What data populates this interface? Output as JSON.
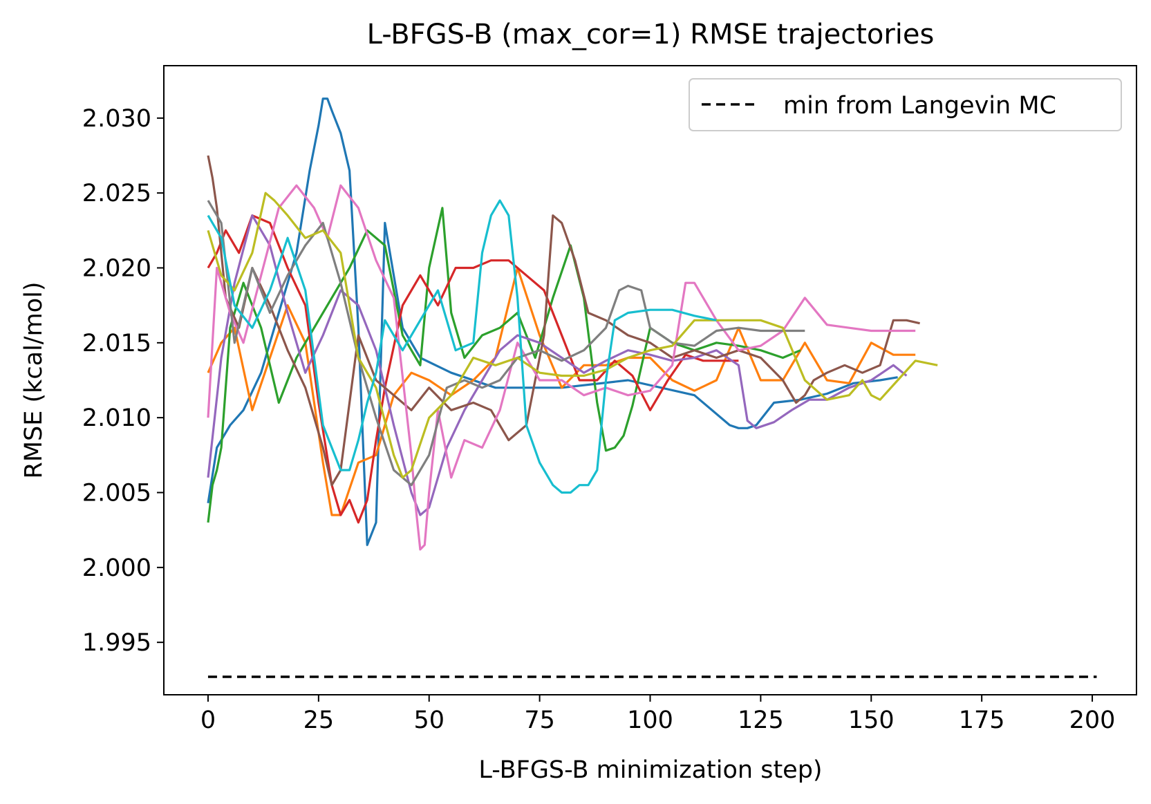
{
  "chart_data": {
    "type": "line",
    "title": "L-BFGS-B (max_cor=1) RMSE trajectories",
    "xlabel": "L-BFGS-B minimization step)",
    "ylabel": "RMSE (kcal/mol)",
    "xlim": [
      -10,
      210
    ],
    "ylim": [
      1.9915,
      2.0335
    ],
    "xticks": [
      0,
      25,
      50,
      75,
      100,
      125,
      150,
      175,
      200
    ],
    "yticks": [
      1.995,
      2.0,
      2.005,
      2.01,
      2.015,
      2.02,
      2.025,
      2.03
    ],
    "grid": false,
    "legend": {
      "placement": "top-right",
      "entries": [
        "min from Langevin MC"
      ]
    },
    "reference_line": {
      "name": "min from Langevin MC",
      "style": "dashed",
      "color": "#000000",
      "x": [
        0,
        201
      ],
      "y": 1.9927
    },
    "colors": [
      "#1f77b4",
      "#ff7f0e",
      "#2ca02c",
      "#d62728",
      "#9467bd",
      "#8c564b",
      "#e377c2",
      "#7f7f7f",
      "#bcbd22",
      "#17becf"
    ],
    "series": [
      {
        "x": [
          0,
          2,
          5,
          8,
          12,
          16,
          20,
          23,
          25,
          26,
          27,
          28,
          30,
          32,
          34,
          36,
          38,
          40,
          44,
          48,
          55,
          65,
          80,
          95,
          110,
          118,
          120,
          122,
          124,
          128,
          134,
          140,
          146,
          152,
          156
        ],
        "y": [
          2.0043,
          2.008,
          2.0095,
          2.0105,
          2.013,
          2.017,
          2.021,
          2.0265,
          2.0295,
          2.0313,
          2.0313,
          2.0305,
          2.029,
          2.0265,
          2.016,
          2.0015,
          2.003,
          2.023,
          2.016,
          2.014,
          2.013,
          2.012,
          2.012,
          2.0125,
          2.0115,
          2.0095,
          2.0093,
          2.0093,
          2.0095,
          2.011,
          2.0112,
          2.0116,
          2.0123,
          2.0125,
          2.0127
        ]
      },
      {
        "x": [
          0,
          3,
          6,
          10,
          14,
          18,
          22,
          26,
          28,
          30,
          34,
          38,
          42,
          46,
          50,
          55,
          60,
          65,
          70,
          75,
          80,
          85,
          90,
          95,
          100,
          105,
          110,
          115,
          120,
          125,
          130,
          135,
          140,
          145,
          150,
          155,
          160
        ],
        "y": [
          2.013,
          2.015,
          2.016,
          2.0105,
          2.014,
          2.0175,
          2.015,
          2.007,
          2.0035,
          2.0035,
          2.007,
          2.0075,
          2.0115,
          2.013,
          2.0125,
          2.0115,
          2.0125,
          2.014,
          2.02,
          2.0155,
          2.012,
          2.0135,
          2.0135,
          2.014,
          2.014,
          2.0125,
          2.0118,
          2.0125,
          2.016,
          2.0125,
          2.0125,
          2.015,
          2.0125,
          2.0123,
          2.015,
          2.0142,
          2.0142
        ]
      },
      {
        "x": [
          0,
          1,
          2,
          3,
          5,
          8,
          12,
          16,
          20,
          24,
          28,
          32,
          36,
          40,
          44,
          48,
          50,
          53,
          55,
          58,
          62,
          66,
          70,
          74,
          78,
          82,
          85,
          88,
          90,
          92,
          94,
          96,
          100,
          105,
          110,
          115,
          120,
          125,
          130,
          134
        ],
        "y": [
          2.003,
          2.0055,
          2.0065,
          2.008,
          2.016,
          2.019,
          2.016,
          2.011,
          2.014,
          2.016,
          2.018,
          2.02,
          2.0225,
          2.0215,
          2.0155,
          2.0135,
          2.02,
          2.024,
          2.017,
          2.014,
          2.0155,
          2.016,
          2.017,
          2.014,
          2.018,
          2.0215,
          2.018,
          2.011,
          2.0078,
          2.008,
          2.0088,
          2.0108,
          2.016,
          2.015,
          2.0145,
          2.015,
          2.0148,
          2.0145,
          2.014,
          2.0145
        ]
      },
      {
        "x": [
          0,
          2,
          4,
          7,
          10,
          14,
          18,
          22,
          25,
          28,
          30,
          32,
          34,
          36,
          38,
          40,
          44,
          48,
          52,
          56,
          60,
          64,
          68,
          72,
          76,
          80,
          84,
          88,
          92,
          96,
          100,
          104,
          108,
          112,
          116,
          120
        ],
        "y": [
          2.02,
          2.021,
          2.0225,
          2.021,
          2.0235,
          2.023,
          2.02,
          2.0175,
          2.011,
          2.0055,
          2.0035,
          2.0045,
          2.003,
          2.0045,
          2.0085,
          2.012,
          2.0175,
          2.0195,
          2.0175,
          2.02,
          2.02,
          2.0205,
          2.0205,
          2.0195,
          2.0185,
          2.0155,
          2.0125,
          2.0125,
          2.0138,
          2.0128,
          2.0105,
          2.0125,
          2.0142,
          2.0138,
          2.0138,
          2.0138
        ]
      },
      {
        "x": [
          0,
          3,
          6,
          10,
          14,
          18,
          22,
          26,
          30,
          34,
          38,
          42,
          46,
          48,
          50,
          54,
          58,
          62,
          66,
          70,
          75,
          80,
          85,
          90,
          95,
          100,
          105,
          110,
          115,
          120,
          122,
          124,
          128,
          132,
          136,
          140,
          145,
          150,
          155,
          158
        ],
        "y": [
          2.006,
          2.014,
          2.019,
          2.0235,
          2.0215,
          2.017,
          2.013,
          2.0155,
          2.0185,
          2.0175,
          2.0145,
          2.0095,
          2.005,
          2.0035,
          2.004,
          2.008,
          2.0105,
          2.0125,
          2.0145,
          2.0155,
          2.015,
          2.014,
          2.013,
          2.0138,
          2.0145,
          2.0142,
          2.0138,
          2.014,
          2.0145,
          2.0135,
          2.0098,
          2.0093,
          2.0097,
          2.0105,
          2.0112,
          2.0112,
          2.012,
          2.0125,
          2.0135,
          2.0128
        ]
      },
      {
        "x": [
          0,
          1,
          2,
          4,
          7,
          10,
          14,
          18,
          22,
          26,
          28,
          30,
          34,
          38,
          42,
          46,
          50,
          55,
          60,
          64,
          68,
          72,
          76,
          78,
          80,
          83,
          86,
          90,
          95,
          100,
          105,
          110,
          115,
          120,
          125,
          130,
          133,
          135,
          137,
          140,
          144,
          148,
          152,
          155,
          158,
          161
        ],
        "y": [
          2.0275,
          2.026,
          2.024,
          2.018,
          2.016,
          2.02,
          2.0175,
          2.0145,
          2.012,
          2.008,
          2.0055,
          2.0065,
          2.0155,
          2.0125,
          2.0115,
          2.0105,
          2.012,
          2.0105,
          2.011,
          2.0105,
          2.0085,
          2.0095,
          2.0155,
          2.0235,
          2.023,
          2.0205,
          2.017,
          2.0165,
          2.0155,
          2.015,
          2.014,
          2.0145,
          2.014,
          2.0145,
          2.014,
          2.0125,
          2.011,
          2.0115,
          2.0125,
          2.013,
          2.0135,
          2.013,
          2.0135,
          2.0165,
          2.0165,
          2.0163
        ]
      },
      {
        "x": [
          0,
          2,
          5,
          8,
          12,
          16,
          20,
          24,
          27,
          30,
          34,
          38,
          42,
          46,
          47,
          48,
          49,
          50,
          52,
          55,
          58,
          62,
          66,
          70,
          75,
          80,
          85,
          90,
          95,
          100,
          105,
          108,
          110,
          115,
          120,
          125,
          130,
          135,
          140,
          145,
          150,
          155,
          160
        ],
        "y": [
          2.01,
          2.02,
          2.017,
          2.015,
          2.0195,
          2.024,
          2.0255,
          2.024,
          2.022,
          2.0255,
          2.024,
          2.0205,
          2.018,
          2.0075,
          2.004,
          2.0012,
          2.0015,
          2.005,
          2.0105,
          2.006,
          2.0085,
          2.008,
          2.0105,
          2.015,
          2.0125,
          2.0125,
          2.0115,
          2.012,
          2.0115,
          2.0118,
          2.0135,
          2.019,
          2.019,
          2.0165,
          2.0145,
          2.0148,
          2.0158,
          2.018,
          2.0162,
          2.016,
          2.0158,
          2.0158,
          2.0158
        ]
      },
      {
        "x": [
          0,
          3,
          6,
          10,
          14,
          18,
          22,
          26,
          30,
          34,
          38,
          42,
          46,
          50,
          54,
          58,
          62,
          66,
          70,
          75,
          80,
          85,
          90,
          93,
          95,
          98,
          100,
          105,
          110,
          115,
          120,
          125,
          130,
          135
        ],
        "y": [
          2.0245,
          2.023,
          2.015,
          2.02,
          2.017,
          2.0195,
          2.0215,
          2.023,
          2.019,
          2.014,
          2.01,
          2.0065,
          2.0055,
          2.0075,
          2.012,
          2.0125,
          2.012,
          2.0125,
          2.014,
          2.0145,
          2.0138,
          2.0145,
          2.016,
          2.0185,
          2.0188,
          2.0185,
          2.016,
          2.015,
          2.0148,
          2.0158,
          2.016,
          2.0158,
          2.0158,
          2.0158
        ]
      },
      {
        "x": [
          0,
          3,
          6,
          10,
          13,
          15,
          18,
          22,
          26,
          30,
          34,
          38,
          42,
          44,
          46,
          50,
          55,
          60,
          65,
          70,
          75,
          80,
          85,
          90,
          95,
          100,
          105,
          110,
          115,
          120,
          125,
          130,
          135,
          140,
          145,
          148,
          150,
          152,
          156,
          160,
          165
        ],
        "y": [
          2.0225,
          2.0195,
          2.0185,
          2.021,
          2.025,
          2.0245,
          2.0235,
          2.022,
          2.0225,
          2.021,
          2.014,
          2.012,
          2.0075,
          2.006,
          2.0065,
          2.01,
          2.0115,
          2.014,
          2.0135,
          2.014,
          2.013,
          2.0128,
          2.0128,
          2.0132,
          2.014,
          2.0145,
          2.0148,
          2.0165,
          2.0165,
          2.0165,
          2.0165,
          2.016,
          2.0125,
          2.0112,
          2.0115,
          2.0125,
          2.0115,
          2.0112,
          2.0125,
          2.0138,
          2.0135
        ]
      },
      {
        "x": [
          0,
          3,
          6,
          10,
          14,
          18,
          22,
          26,
          30,
          32,
          34,
          36,
          38,
          40,
          44,
          48,
          52,
          56,
          60,
          62,
          64,
          66,
          68,
          70,
          72,
          75,
          78,
          80,
          82,
          84,
          86,
          88,
          90,
          92,
          95,
          100,
          105,
          110,
          115
        ],
        "y": [
          2.0235,
          2.022,
          2.0175,
          2.016,
          2.0185,
          2.022,
          2.0185,
          2.0095,
          2.0065,
          2.0065,
          2.0085,
          2.011,
          2.013,
          2.0165,
          2.0145,
          2.0165,
          2.0185,
          2.0145,
          2.015,
          2.021,
          2.0235,
          2.0245,
          2.0235,
          2.018,
          2.0095,
          2.007,
          2.0055,
          2.005,
          2.005,
          2.0055,
          2.0055,
          2.0065,
          2.0125,
          2.0165,
          2.017,
          2.0172,
          2.0172,
          2.0168,
          2.0165
        ]
      }
    ]
  }
}
